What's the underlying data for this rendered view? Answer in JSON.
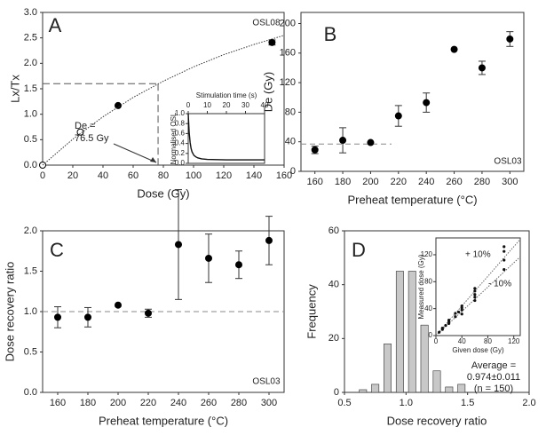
{
  "chart_data": [
    {
      "type": "scatter",
      "panel_label": "A",
      "sample": "OSL08",
      "x_label": "Dose (Gy)",
      "y_label": "Lx/Tx",
      "xlim": [
        0,
        160
      ],
      "xticks": [
        0,
        20,
        40,
        60,
        80,
        100,
        120,
        140,
        160
      ],
      "ylim": [
        0,
        3
      ],
      "yticks": [
        {
          "value": 0,
          "label": "0.0"
        },
        {
          "value": 0.5,
          "label": "0.5"
        },
        {
          "value": 1,
          "label": "1.0"
        },
        {
          "value": 1.5,
          "label": "1.5"
        },
        {
          "value": 2,
          "label": "2.0"
        },
        {
          "value": 2.5,
          "label": "2.5"
        },
        {
          "value": 3,
          "label": "3.0"
        }
      ],
      "color": "#000000",
      "series": [
        {
          "x": [
            0,
            25,
            50,
            152
          ],
          "values": [
            0,
            0.65,
            1.17,
            2.41
          ],
          "errors": [
            null,
            null,
            null,
            0.05
          ],
          "markers": [
            "open",
            "open",
            "filled",
            "filled"
          ]
        }
      ],
      "fit": {
        "x": [
          0,
          20,
          40,
          60,
          80,
          100,
          120,
          140,
          160
        ],
        "y": [
          0,
          0.51,
          0.95,
          1.33,
          1.65,
          1.93,
          2.17,
          2.37,
          2.55
        ]
      },
      "de_line": {
        "x": 76.5,
        "y": 1.6
      },
      "de_label": "De =",
      "de_value_label": "76.5 Gy",
      "inset": {
        "type": "line",
        "x_label": "Stimulation time (s)",
        "y_label": "Normalised OSL",
        "xlim": [
          0,
          40
        ],
        "xticks": [
          0,
          10,
          20,
          30,
          40
        ],
        "ylim": [
          0,
          1
        ],
        "yticks": [
          {
            "value": 0,
            "label": "0.0"
          },
          {
            "value": 0.2,
            "label": "0.2"
          },
          {
            "value": 0.4,
            "label": "0.4"
          },
          {
            "value": 0.6,
            "label": "0.6"
          },
          {
            "value": 0.8,
            "label": "0.8"
          },
          {
            "value": 1,
            "label": "1.0"
          }
        ],
        "x": [
          0,
          0.5,
          1,
          1.5,
          2,
          3,
          4,
          5,
          7,
          10,
          15,
          20,
          30,
          40
        ],
        "values": [
          1.0,
          0.62,
          0.42,
          0.3,
          0.23,
          0.16,
          0.13,
          0.11,
          0.09,
          0.08,
          0.075,
          0.07,
          0.07,
          0.07
        ]
      }
    },
    {
      "type": "scatter",
      "panel_label": "B",
      "sample": "OSL03",
      "x_label": "Preheat temperature (°C)",
      "y_label": "De (Gy)",
      "xlim": [
        150,
        310
      ],
      "xticks": [
        160,
        180,
        200,
        220,
        240,
        260,
        280,
        300
      ],
      "ylim": [
        0,
        215
      ],
      "yticks": [
        0,
        40,
        80,
        120,
        160,
        200
      ],
      "color": "#000000",
      "series": [
        {
          "x": [
            160,
            180,
            200,
            220,
            240,
            260,
            280,
            300
          ],
          "values": [
            29,
            42,
            39,
            75,
            93,
            165,
            140,
            179
          ],
          "errors": [
            5,
            17,
            null,
            14,
            13,
            null,
            9,
            10
          ]
        }
      ],
      "ref_line": {
        "y": 37,
        "x": [
          150,
          215
        ]
      }
    },
    {
      "type": "scatter",
      "panel_label": "C",
      "sample": "OSL03",
      "x_label": "Preheat temperature (°C)",
      "y_label": "Dose recovery ratio",
      "xlim": [
        150,
        310
      ],
      "xticks": [
        160,
        180,
        200,
        220,
        240,
        260,
        280,
        300
      ],
      "ylim": [
        0,
        2
      ],
      "yticks": [
        {
          "value": 0,
          "label": "0.0"
        },
        {
          "value": 0.5,
          "label": "0.5"
        },
        {
          "value": 1,
          "label": "1.0"
        },
        {
          "value": 1.5,
          "label": "1.5"
        },
        {
          "value": 2,
          "label": "2.0"
        }
      ],
      "color": "#000000",
      "series": [
        {
          "x": [
            160,
            180,
            200,
            220,
            240,
            260,
            280,
            300
          ],
          "values": [
            0.93,
            0.93,
            1.08,
            0.98,
            1.83,
            1.66,
            1.58,
            1.88
          ],
          "errors": [
            0.13,
            0.12,
            null,
            0.05,
            0.68,
            0.3,
            0.17,
            0.3
          ]
        }
      ],
      "ref_line": {
        "y": 1.0,
        "x": [
          150,
          310
        ]
      }
    },
    {
      "type": "histogram",
      "panel_label": "D",
      "x_label": "Dose recovery ratio",
      "y_label": "Frequency",
      "xlim": [
        0.5,
        2.0
      ],
      "xticks": [
        {
          "value": 0.5,
          "label": "0.5"
        },
        {
          "value": 1,
          "label": "1.0"
        },
        {
          "value": 1.5,
          "label": "1.5"
        },
        {
          "value": 2,
          "label": "2.0"
        }
      ],
      "ylim": [
        0,
        60
      ],
      "yticks": [
        0,
        20,
        40,
        60
      ],
      "color": "#c8c8c8",
      "bins": [
        0.6,
        0.7,
        0.8,
        0.9,
        1.0,
        1.1,
        1.2,
        1.3,
        1.4,
        1.5
      ],
      "counts": [
        1,
        3,
        18,
        45,
        45,
        25,
        8,
        2,
        3
      ],
      "stats": [
        "Average =",
        "0.974±0.011",
        "(n = 150)"
      ],
      "inset": {
        "type": "scatter",
        "x_label": "Given dose (Gy)",
        "y_label": "Measured dose (Gy)",
        "xlim": [
          0,
          130
        ],
        "xticks": [
          0,
          40,
          80,
          120
        ],
        "ylim": [
          0,
          145
        ],
        "yticks": [
          0,
          40,
          80,
          120
        ],
        "x": [
          5,
          10,
          10,
          15,
          20,
          20,
          20,
          30,
          30,
          35,
          40,
          40,
          40,
          40,
          60,
          60,
          60,
          60,
          60,
          105,
          105,
          105,
          105
        ],
        "values": [
          5,
          9,
          11,
          15,
          18,
          21,
          23,
          28,
          33,
          35,
          32,
          38,
          41,
          44,
          52,
          57,
          61,
          66,
          70,
          98,
          112,
          125,
          132
        ],
        "ratio_lines": [
          1.1,
          0.9
        ],
        "ratio_labels": [
          "+ 10%",
          "- 10%"
        ]
      }
    }
  ]
}
